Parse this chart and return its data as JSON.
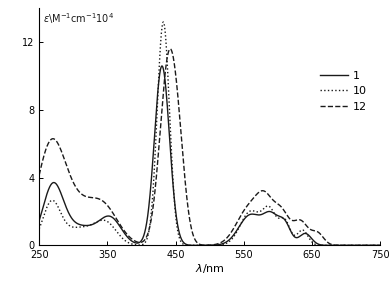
{
  "xlim": [
    250,
    750
  ],
  "ylim": [
    0,
    14
  ],
  "yticks": [
    0,
    4,
    8,
    12
  ],
  "xticks": [
    250,
    350,
    450,
    550,
    650,
    750
  ],
  "xlabel": "λ/nm",
  "legend_labels": [
    "1",
    "10",
    "12"
  ],
  "background_color": "#ffffff",
  "line_color": "#1a1a1a",
  "ylabel_annotation": "ε\\M⁻¹cm⁻¹10⁴",
  "curve1_gaussians": [
    [
      270,
      15,
      3.3
    ],
    [
      310,
      28,
      1.1
    ],
    [
      355,
      16,
      1.4
    ],
    [
      430,
      11,
      10.6
    ],
    [
      560,
      17,
      1.8
    ],
    [
      590,
      11,
      1.5
    ],
    [
      610,
      9,
      1.2
    ],
    [
      640,
      9,
      0.7
    ]
  ],
  "curve10_gaussians": [
    [
      268,
      13,
      2.4
    ],
    [
      308,
      24,
      1.0
    ],
    [
      348,
      16,
      1.2
    ],
    [
      432,
      9,
      13.2
    ],
    [
      560,
      15,
      2.0
    ],
    [
      588,
      10,
      1.9
    ],
    [
      610,
      8,
      1.4
    ],
    [
      636,
      8,
      0.9
    ]
  ],
  "curve12_gaussians": [
    [
      266,
      20,
      5.0
    ],
    [
      298,
      28,
      2.3
    ],
    [
      345,
      22,
      2.0
    ],
    [
      440,
      13,
      10.8
    ],
    [
      456,
      10,
      2.5
    ],
    [
      557,
      18,
      2.1
    ],
    [
      582,
      13,
      2.2
    ],
    [
      606,
      11,
      1.7
    ],
    [
      633,
      11,
      1.4
    ],
    [
      658,
      9,
      0.7
    ]
  ]
}
